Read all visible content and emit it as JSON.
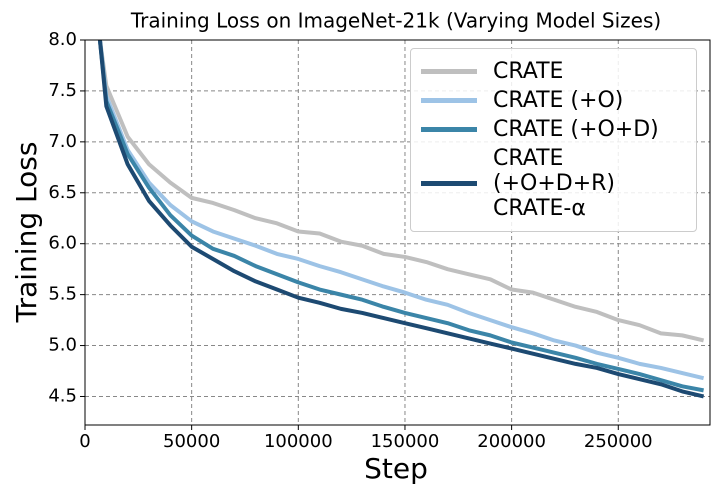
{
  "chart_data": {
    "type": "line",
    "title": "Training Loss on ImageNet-21k (Varying Model Sizes)",
    "x_label": "Step",
    "y_label": "Training Loss",
    "x": [
      7000,
      10000,
      20000,
      30000,
      40000,
      50000,
      60000,
      70000,
      80000,
      90000,
      100000,
      110000,
      120000,
      130000,
      140000,
      150000,
      160000,
      170000,
      180000,
      190000,
      200000,
      210000,
      220000,
      230000,
      240000,
      250000,
      260000,
      270000,
      280000,
      290000
    ],
    "series": [
      {
        "name": "CRATE",
        "color": "#bfbfbf",
        "values": [
          8.0,
          7.55,
          7.05,
          6.78,
          6.6,
          6.45,
          6.4,
          6.33,
          6.25,
          6.2,
          6.12,
          6.1,
          6.02,
          5.98,
          5.9,
          5.87,
          5.82,
          5.75,
          5.7,
          5.65,
          5.55,
          5.52,
          5.45,
          5.38,
          5.33,
          5.25,
          5.2,
          5.12,
          5.1,
          5.05
        ]
      },
      {
        "name": "CRATE (+O)",
        "color": "#9dc3e6",
        "values": [
          8.0,
          7.45,
          6.92,
          6.6,
          6.38,
          6.22,
          6.12,
          6.05,
          5.98,
          5.9,
          5.85,
          5.78,
          5.72,
          5.65,
          5.58,
          5.52,
          5.45,
          5.4,
          5.32,
          5.25,
          5.18,
          5.12,
          5.05,
          5.0,
          4.93,
          4.88,
          4.82,
          4.78,
          4.73,
          4.68
        ]
      },
      {
        "name": "CRATE (+O+D)",
        "color": "#3b85a8",
        "values": [
          8.0,
          7.4,
          6.88,
          6.55,
          6.28,
          6.08,
          5.95,
          5.88,
          5.78,
          5.7,
          5.62,
          5.55,
          5.5,
          5.45,
          5.38,
          5.32,
          5.27,
          5.22,
          5.15,
          5.1,
          5.03,
          4.98,
          4.93,
          4.88,
          4.82,
          4.77,
          4.72,
          4.66,
          4.6,
          4.56
        ]
      },
      {
        "name": "CRATE (+O+D+R)\nCRATE-α",
        "color": "#1d4a72",
        "values": [
          8.0,
          7.35,
          6.78,
          6.42,
          6.18,
          5.97,
          5.85,
          5.73,
          5.63,
          5.55,
          5.47,
          5.42,
          5.36,
          5.32,
          5.27,
          5.22,
          5.17,
          5.12,
          5.07,
          5.02,
          4.97,
          4.92,
          4.87,
          4.82,
          4.78,
          4.72,
          4.67,
          4.62,
          4.55,
          4.5
        ]
      }
    ],
    "xlim": [
      0,
      293000
    ],
    "ylim": [
      4.22,
      8.0
    ],
    "xticks": [
      0,
      50000,
      100000,
      150000,
      200000,
      250000
    ],
    "yticks": [
      4.5,
      {
        "value": 5,
        "label": "5.0"
      },
      5.5,
      {
        "value": 6,
        "label": "6.0"
      },
      6.5,
      {
        "value": 7,
        "label": "7.0"
      },
      7.5,
      {
        "value": 8,
        "label": "8.0"
      }
    ],
    "grid": true,
    "legend": "upper right"
  }
}
